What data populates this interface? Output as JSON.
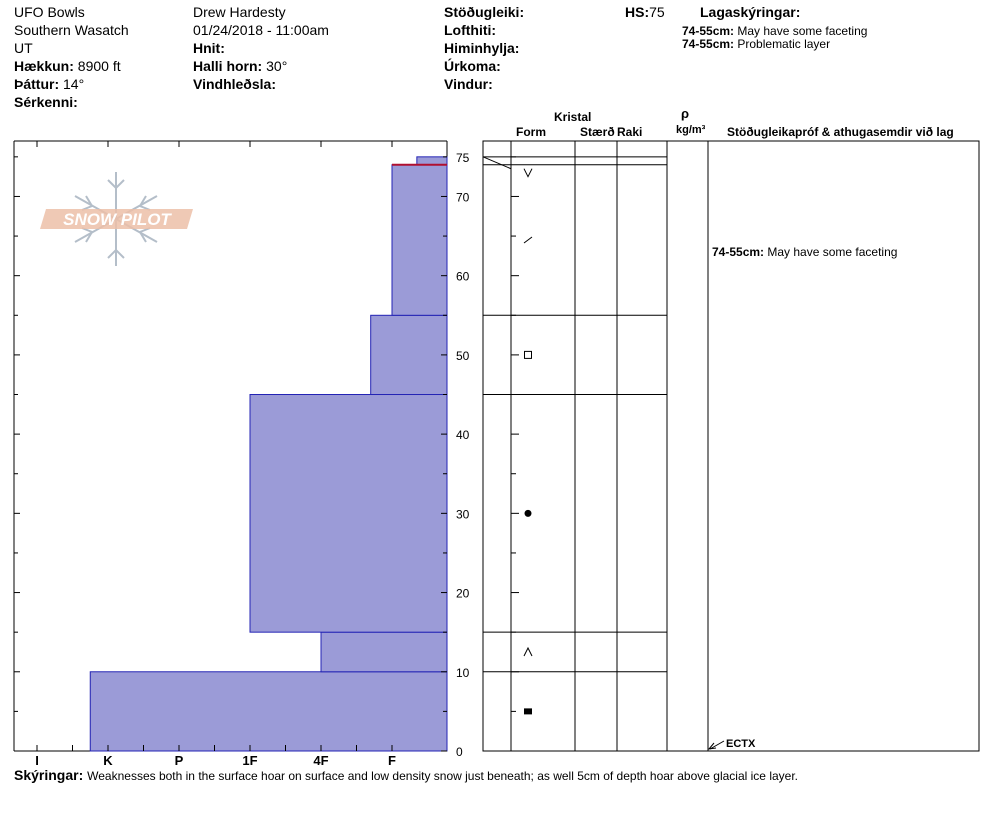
{
  "header": {
    "location": "UFO Bowls",
    "range": "Southern Wasatch",
    "state": "UT",
    "elevation_label": "Hækkun:",
    "elevation_value": "8900 ft",
    "aspect_label": "Þáttur:",
    "aspect_value": "14°",
    "features_label": "Sérkenni:",
    "observer": "Drew Hardesty",
    "datetime": "01/24/2018 - 11:00am",
    "coords_label": "Hnit:",
    "slope_label": "Halli horn:",
    "slope_value": "30°",
    "wind_loading_label": "Vindhleðsla:",
    "stability_label": "Stöðugleiki:",
    "air_temp_label": "Lofthiti:",
    "sky_label": "Himinhylja:",
    "precip_label": "Úrkoma:",
    "wind_label": "Vindur:",
    "hs_label": "HS:",
    "hs_value": "75",
    "layer_notes_title": "Lagaskýringar:",
    "layer_notes": [
      {
        "range": "74-55cm:",
        "text": "May have some faceting"
      },
      {
        "range": "74-55cm:",
        "text": "Problematic layer"
      }
    ]
  },
  "logo": {
    "text": "SNOW PILOT"
  },
  "columns": {
    "crystal": "Kristal",
    "form": "Form",
    "size": "Stærð",
    "moisture": "Raki",
    "rho": "ρ",
    "density_unit": "kg/m³",
    "stability_tests": "Stöðugleikapróf & athugasemdir við lag"
  },
  "layer_comment": {
    "range": "74-55cm:",
    "text": "May have some faceting"
  },
  "test_result": "ECTX",
  "footer": {
    "label": "Skýringar:",
    "text": "Weaknesses both in the surface hoar on surface and low density snow just beneath; as well 5cm of depth hoar above glacial ice layer."
  },
  "chart_data": {
    "type": "bar",
    "title": "",
    "ylabel": "",
    "xlabel": "",
    "hardness_scale": [
      "I",
      "K",
      "P",
      "1F",
      "4F",
      "F"
    ],
    "y_ticks": [
      0,
      10,
      20,
      30,
      40,
      50,
      60,
      70,
      75
    ],
    "ylim": [
      0,
      75
    ],
    "layers": [
      {
        "bottom": 0,
        "top": 10,
        "hardness": "K+",
        "hardness_index": 0.75,
        "grain": "ice"
      },
      {
        "bottom": 10,
        "top": 15,
        "hardness": "4F",
        "hardness_index": 4,
        "grain": "depth-hoar"
      },
      {
        "bottom": 15,
        "top": 45,
        "hardness": "1F",
        "hardness_index": 3,
        "grain": "rounds"
      },
      {
        "bottom": 45,
        "top": 55,
        "hardness": "F+",
        "hardness_index": 4.7,
        "grain": "facets"
      },
      {
        "bottom": 55,
        "top": 74,
        "hardness": "F",
        "hardness_index": 5,
        "grain": "decomposing"
      },
      {
        "bottom": 74,
        "top": 75,
        "hardness": "F-",
        "hardness_index": 5.35,
        "grain": "surface-hoar"
      }
    ],
    "problem_layer_depth": 74,
    "temperature_profile": [
      [
        73.5,
        0
      ],
      [
        75,
        1
      ]
    ],
    "test_depth": 0
  }
}
